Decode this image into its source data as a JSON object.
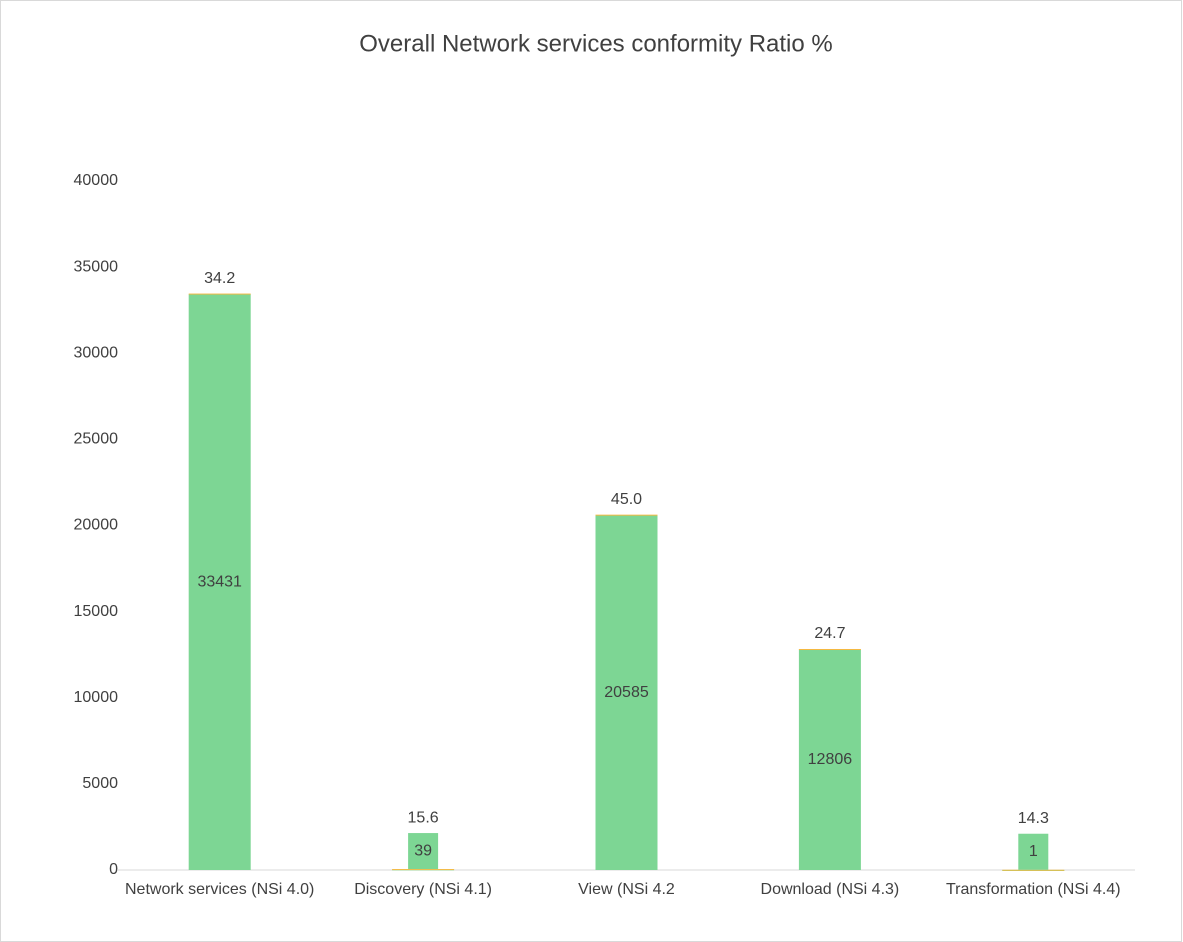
{
  "chart_data": {
    "type": "bar",
    "stacked": true,
    "title": "Overall Network services conformity Ratio %",
    "categories": [
      "Network services (NSi 4.0)",
      "Discovery (NSi 4.1)",
      "View (NSi 4.2",
      "Download (NSi 4.3)",
      "Transformation (NSi 4.4)"
    ],
    "series": [
      {
        "color": "#7dd694",
        "values": [
          33431,
          39,
          20585,
          12806,
          1
        ]
      },
      {
        "color": "#f5b942",
        "values": [
          34.2,
          15.6,
          45.0,
          24.7,
          14.3
        ],
        "value_labels": [
          "34.2",
          "15.6",
          "45.0",
          "24.7",
          "14.3"
        ]
      }
    ],
    "ylim": [
      0,
      40000
    ],
    "yticks": [
      0,
      5000,
      10000,
      15000,
      20000,
      25000,
      30000,
      35000,
      40000
    ],
    "grid": false
  }
}
